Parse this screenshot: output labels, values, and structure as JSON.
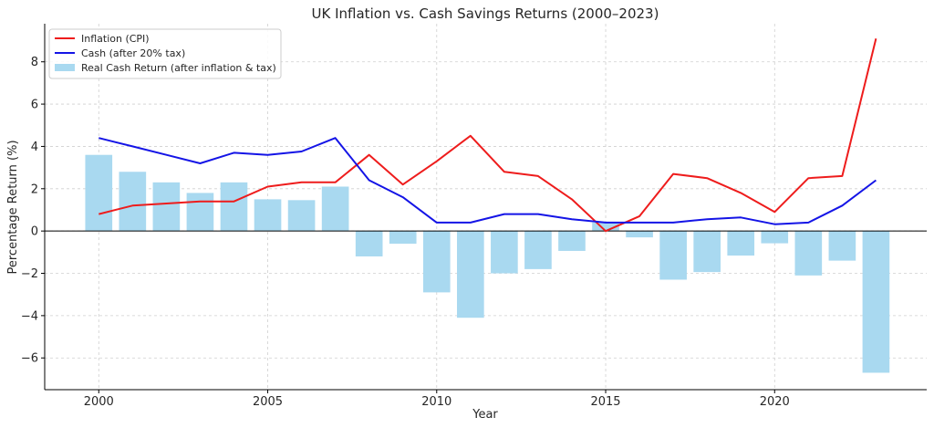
{
  "chart_data": {
    "type": "bar+line",
    "title": "UK Inflation vs. Cash Savings Returns (2000–2023)",
    "xlabel": "Year",
    "ylabel": "Percentage Return (%)",
    "xlim": [
      1998.4,
      2024.5
    ],
    "ylim": [
      -7.5,
      9.8
    ],
    "grid": true,
    "legend_position": "top-left",
    "x_ticks": [
      2000,
      2005,
      2010,
      2015,
      2020
    ],
    "y_ticks": [
      -6,
      -4,
      -2,
      0,
      2,
      4,
      6,
      8
    ],
    "x": [
      2000,
      2001,
      2002,
      2003,
      2004,
      2005,
      2006,
      2007,
      2008,
      2009,
      2010,
      2011,
      2012,
      2013,
      2014,
      2015,
      2016,
      2017,
      2018,
      2019,
      2020,
      2021,
      2022,
      2023
    ],
    "series": [
      {
        "name": "Inflation (CPI)",
        "kind": "line",
        "color": "#ee1c1c",
        "values": [
          0.8,
          1.2,
          1.3,
          1.4,
          1.4,
          2.1,
          2.3,
          2.3,
          3.6,
          2.2,
          3.3,
          4.5,
          2.8,
          2.6,
          1.5,
          0.0,
          0.7,
          2.7,
          2.5,
          1.8,
          0.9,
          2.5,
          2.6,
          9.1
        ]
      },
      {
        "name": "Cash (after 20% tax)",
        "kind": "line",
        "color": "#1414e6",
        "values": [
          4.4,
          4.0,
          3.6,
          3.2,
          3.7,
          3.6,
          3.76,
          4.4,
          2.4,
          1.6,
          0.4,
          0.4,
          0.8,
          0.8,
          0.56,
          0.4,
          0.4,
          0.4,
          0.56,
          0.64,
          0.32,
          0.4,
          1.2,
          2.4
        ]
      },
      {
        "name": "Real Cash Return (after inflation & tax)",
        "kind": "bar",
        "color": "#a9d9f0",
        "values": [
          3.6,
          2.8,
          2.3,
          1.8,
          2.3,
          1.5,
          1.46,
          2.1,
          -1.2,
          -0.6,
          -2.9,
          -4.1,
          -2.0,
          -1.8,
          -0.94,
          0.4,
          -0.3,
          -2.3,
          -1.94,
          -1.16,
          -0.58,
          -2.1,
          -1.4,
          -6.7
        ]
      }
    ]
  }
}
